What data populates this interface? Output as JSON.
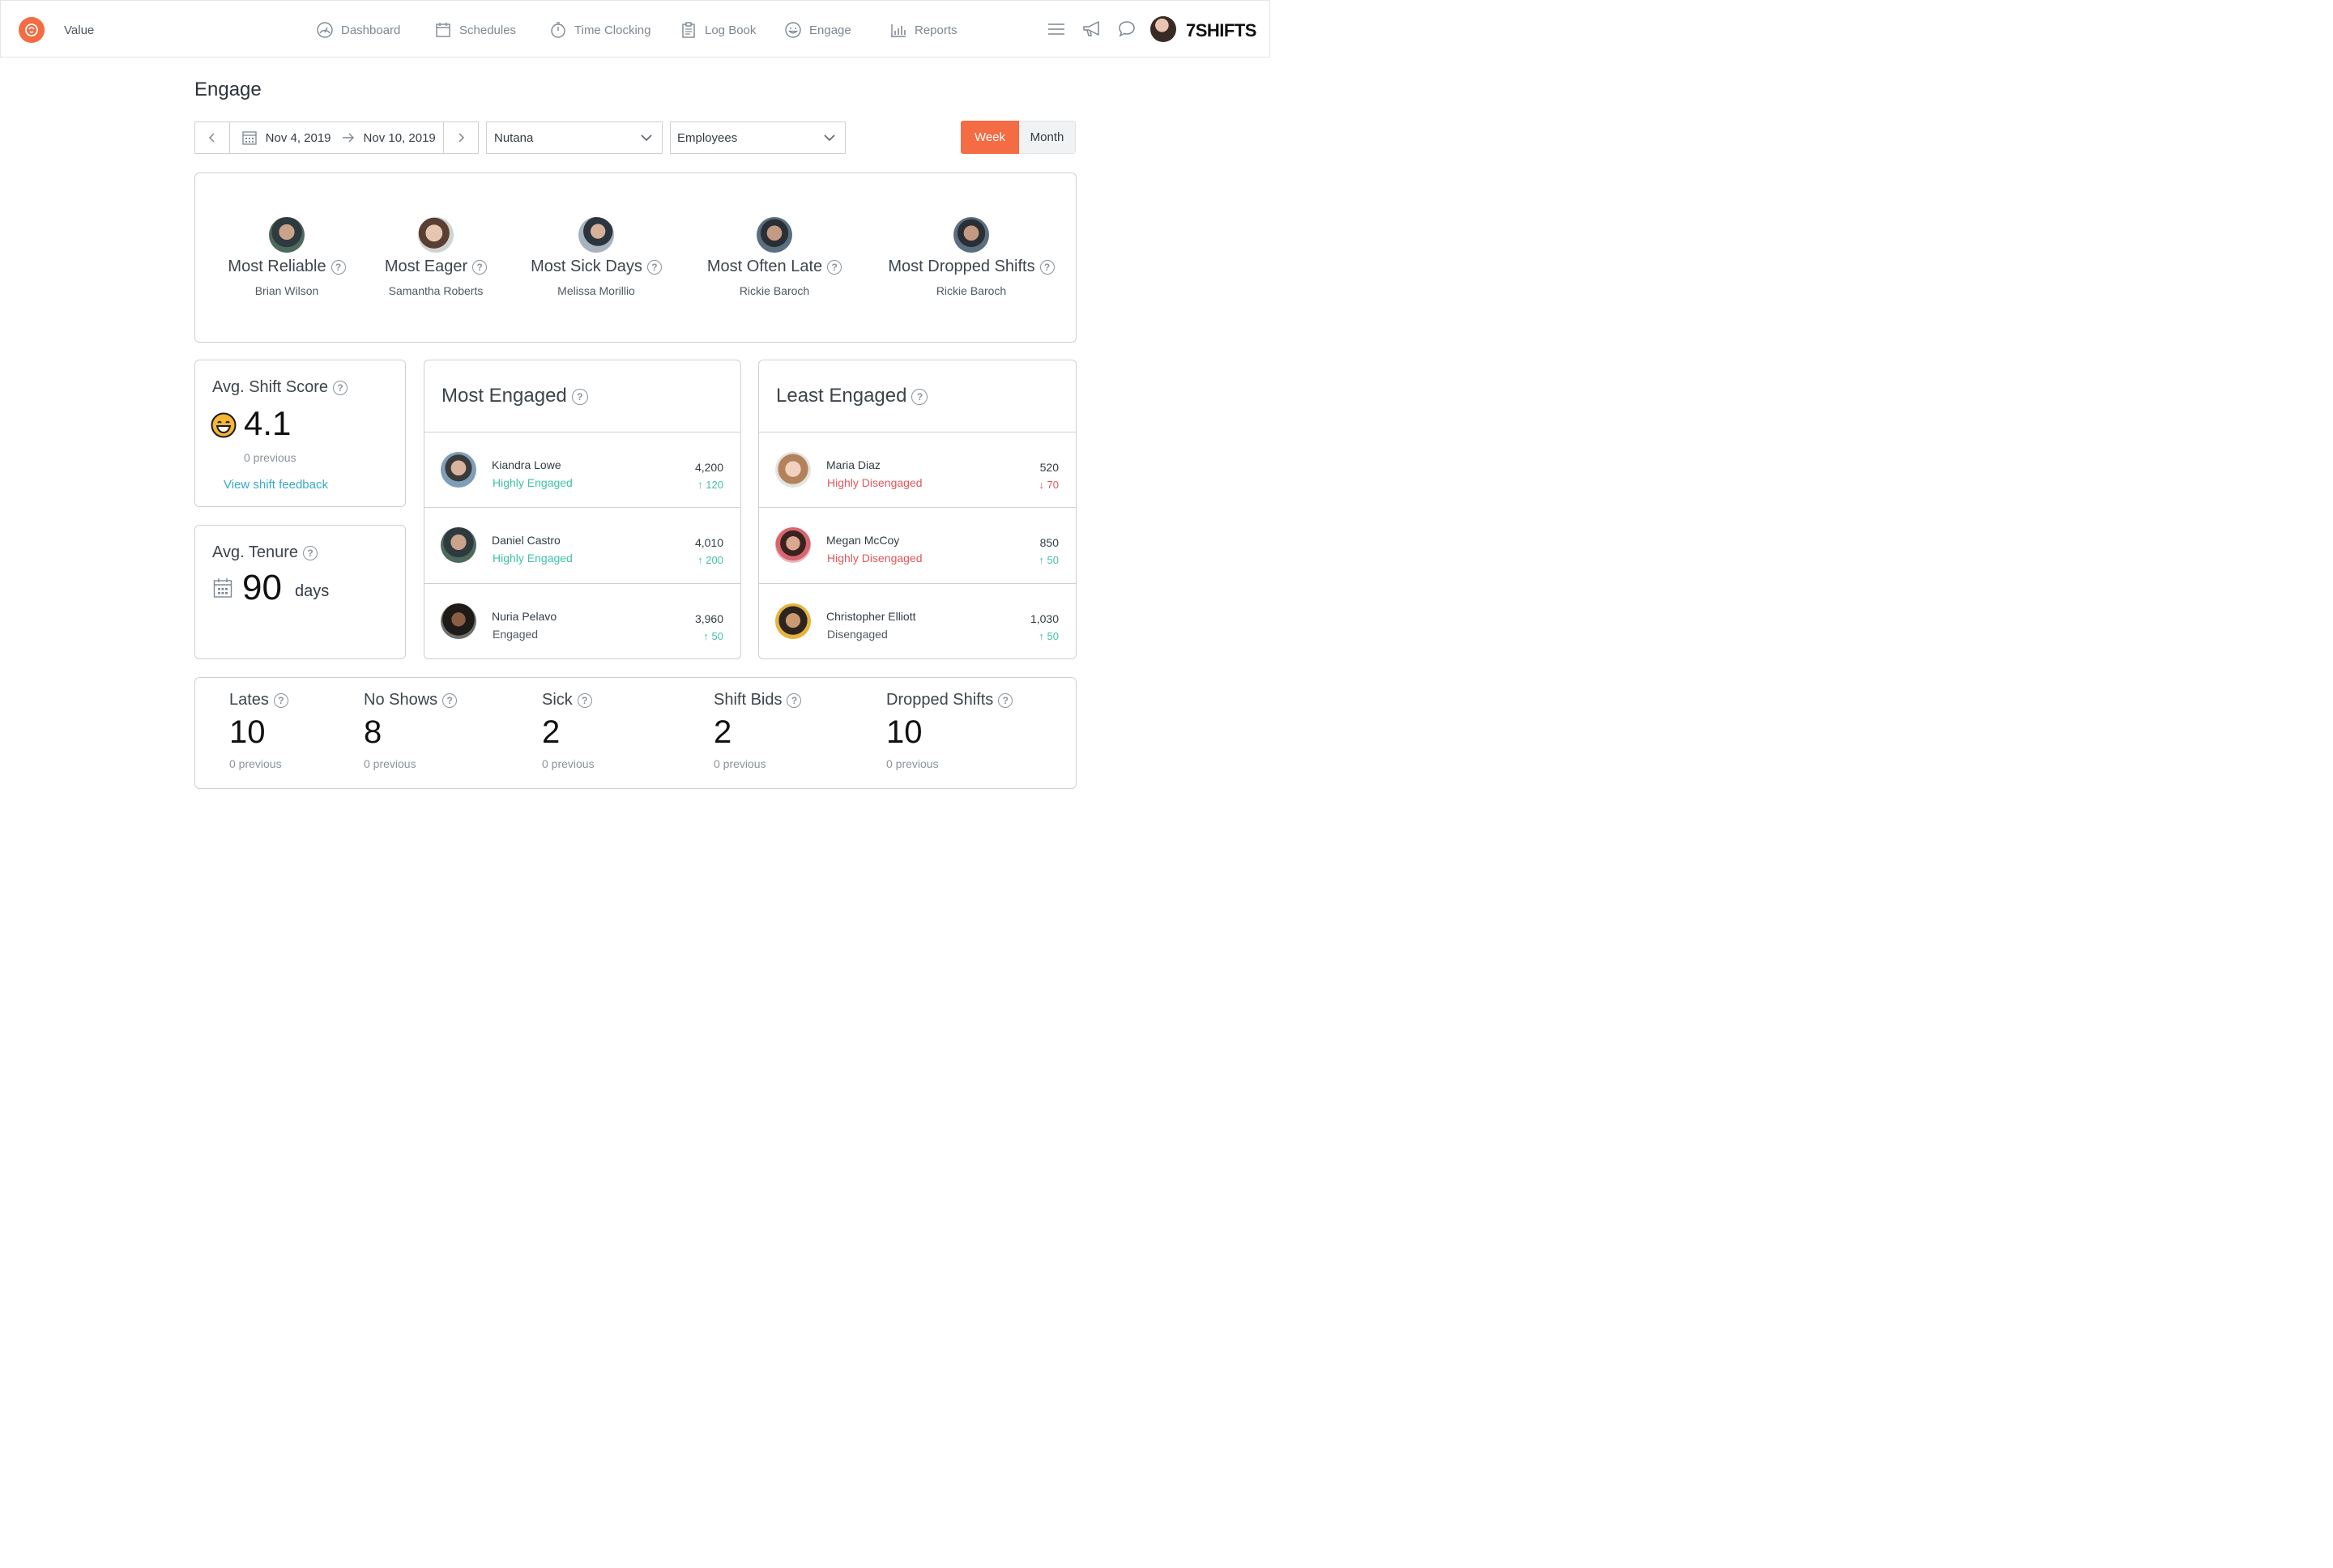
{
  "header": {
    "brand_name": "Value",
    "logo_text": "7SHIFTS",
    "nav": [
      {
        "label": "Dashboard",
        "icon": "dashboard-gauge-icon"
      },
      {
        "label": "Schedules",
        "icon": "calendar-icon"
      },
      {
        "label": "Time Clocking",
        "icon": "stopwatch-icon"
      },
      {
        "label": "Log Book",
        "icon": "clipboard-icon"
      },
      {
        "label": "Engage",
        "icon": "smiley-icon"
      },
      {
        "label": "Reports",
        "icon": "bar-chart-icon"
      }
    ]
  },
  "page": {
    "title": "Engage"
  },
  "filters": {
    "date_start": "Nov 4, 2019",
    "date_end": "Nov 10, 2019",
    "location": "Nutana",
    "group": "Employees",
    "week_label": "Week",
    "month_label": "Month",
    "active_period": "Week"
  },
  "awards": [
    {
      "title": "Most Reliable",
      "name": "Brian Wilson"
    },
    {
      "title": "Most Eager",
      "name": "Samantha Roberts"
    },
    {
      "title": "Most Sick Days",
      "name": "Melissa Morillio"
    },
    {
      "title": "Most Often Late",
      "name": "Rickie Baroch"
    },
    {
      "title": "Most Dropped Shifts",
      "name": "Rickie Baroch"
    }
  ],
  "shift_score": {
    "label": "Avg. Shift Score",
    "value": "4.1",
    "previous": "0 previous",
    "link": "View shift feedback"
  },
  "tenure": {
    "label": "Avg. Tenure",
    "value": "90",
    "unit": "days"
  },
  "most_engaged": {
    "title": "Most Engaged",
    "rows": [
      {
        "name": "Kiandra Lowe",
        "status": "Highly Engaged",
        "score": "4,200",
        "delta": "120",
        "direction": "up"
      },
      {
        "name": "Daniel Castro",
        "status": "Highly Engaged",
        "score": "4,010",
        "delta": "200",
        "direction": "up"
      },
      {
        "name": "Nuria Pelavo",
        "status": "Engaged",
        "score": "3,960",
        "delta": "50",
        "direction": "up"
      }
    ]
  },
  "least_engaged": {
    "title": "Least Engaged",
    "rows": [
      {
        "name": "Maria Diaz",
        "status": "Highly Disengaged",
        "score": "520",
        "delta": "70",
        "direction": "down"
      },
      {
        "name": "Megan McCoy",
        "status": "Highly Disengaged",
        "score": "850",
        "delta": "50",
        "direction": "up"
      },
      {
        "name": "Christopher Elliott",
        "status": "Disengaged",
        "score": "1,030",
        "delta": "50",
        "direction": "up"
      }
    ]
  },
  "stats": [
    {
      "label": "Lates",
      "value": "10",
      "previous": "0 previous"
    },
    {
      "label": "No Shows",
      "value": "8",
      "previous": "0 previous"
    },
    {
      "label": "Sick",
      "value": "2",
      "previous": "0 previous"
    },
    {
      "label": "Shift Bids",
      "value": "2",
      "previous": "0 previous"
    },
    {
      "label": "Dropped Shifts",
      "value": "10",
      "previous": "0 previous"
    }
  ],
  "colors": {
    "accent": "#f36c43",
    "positive": "#3fc2a8",
    "negative": "#e2565a",
    "link": "#36a9c9"
  }
}
